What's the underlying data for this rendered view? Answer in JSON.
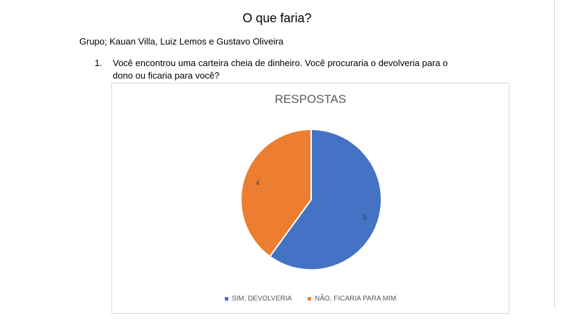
{
  "document": {
    "title": "O que faria?",
    "group_line": "Grupo; Kauan Villa, Luiz Lemos e Gustavo Oliveira",
    "question_number": "1.",
    "question_text": "Você encontrou uma carteira cheia de dinheiro. Você procuraria o devolveria para o dono ou ficaria para você?"
  },
  "chart_data": {
    "type": "pie",
    "title": "RESPOSTAS",
    "categories": [
      "SIM, DEVOLVERIA",
      "NÃO, FICARIA PARA MIM"
    ],
    "values": [
      6,
      4
    ],
    "colors": [
      "#4472C4",
      "#ED7D31"
    ],
    "data_labels": [
      "6",
      "4"
    ],
    "legend_position": "bottom"
  }
}
